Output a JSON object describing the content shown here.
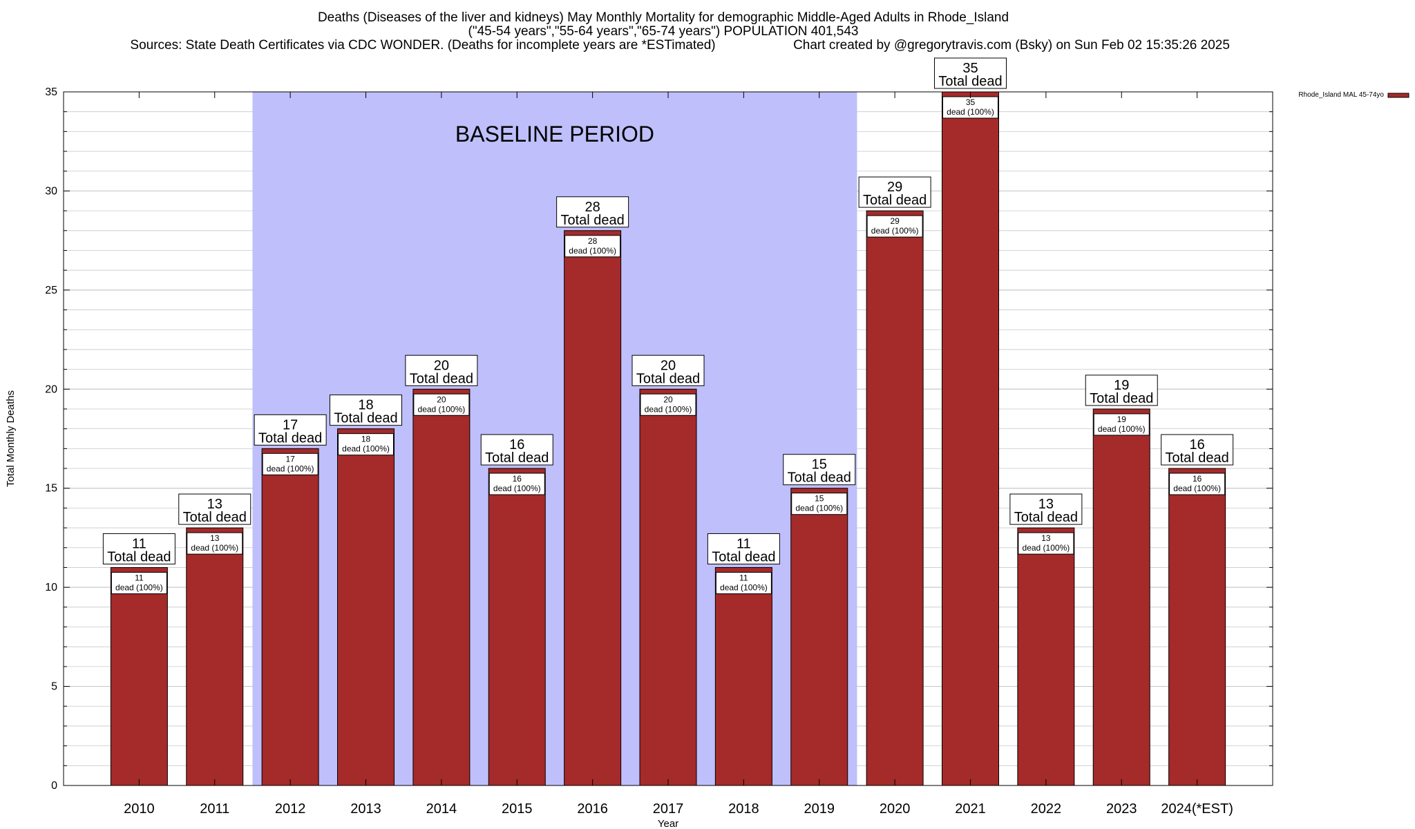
{
  "title_lines": [
    "Deaths (Diseases of the liver and kidneys) May Monthly Mortality for demographic Middle-Aged Adults in Rhode_Island",
    "(\"45-54 years\",\"55-64 years\",\"65-74 years\") POPULATION 401,543",
    "Sources: State Death Certificates via CDC WONDER. (Deaths for incomplete years are *ESTimated)",
    "Chart created by @gregorytravis.com (Bsky) on Sun Feb 02 15:35:26 2025"
  ],
  "chart_data": {
    "type": "bar",
    "xlabel": "Year",
    "ylabel": "Total Monthly Deaths",
    "ylim": [
      0,
      35
    ],
    "y_ticks": [
      0,
      5,
      10,
      15,
      20,
      25,
      30,
      35
    ],
    "grid": true,
    "categories": [
      "2010",
      "2011",
      "2012",
      "2013",
      "2014",
      "2015",
      "2016",
      "2017",
      "2018",
      "2019",
      "2020",
      "2021",
      "2022",
      "2023",
      "2024(*EST)"
    ],
    "series": [
      {
        "name": "Rhode_Island MAL 45-74yo",
        "color": "#a52a2a",
        "values": [
          11,
          13,
          17,
          18,
          20,
          16,
          28,
          20,
          11,
          15,
          29,
          35,
          13,
          19,
          16
        ]
      }
    ],
    "total_label_text": "Total dead",
    "inner_label_text": "dead (100%)",
    "baseline": {
      "label": "BASELINE PERIOD",
      "start": "2012",
      "end": "2019",
      "color": "#bfbffb"
    },
    "legend_position": "top-right"
  }
}
